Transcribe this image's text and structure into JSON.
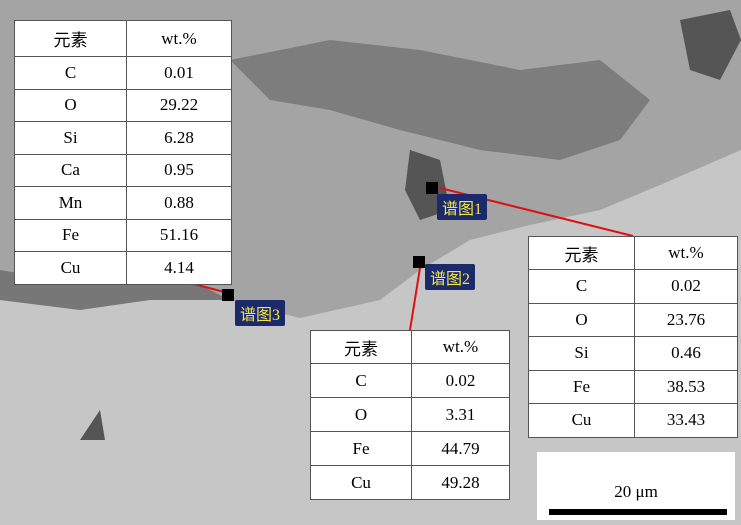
{
  "tables": [
    {
      "header": [
        "元素",
        "wt.%"
      ],
      "rows": [
        [
          "C",
          0.01
        ],
        [
          "O",
          29.22
        ],
        [
          "Si",
          6.28
        ],
        [
          "Ca",
          0.95
        ],
        [
          "Mn",
          0.88
        ],
        [
          "Fe",
          51.16
        ],
        [
          "Cu",
          4.14
        ]
      ]
    },
    {
      "header": [
        "元素",
        "wt.%"
      ],
      "rows": [
        [
          "C",
          0.02
        ],
        [
          "O",
          3.31
        ],
        [
          "Fe",
          44.79
        ],
        [
          "Cu",
          49.28
        ]
      ]
    },
    {
      "header": [
        "元素",
        "wt.%"
      ],
      "rows": [
        [
          "C",
          0.02
        ],
        [
          "O",
          23.76
        ],
        [
          "Si",
          0.46
        ],
        [
          "Fe",
          38.53
        ],
        [
          "Cu",
          33.43
        ]
      ]
    }
  ],
  "spectra": [
    "谱图3",
    "谱图2",
    "谱图1"
  ],
  "scale_bar": "20 μm"
}
